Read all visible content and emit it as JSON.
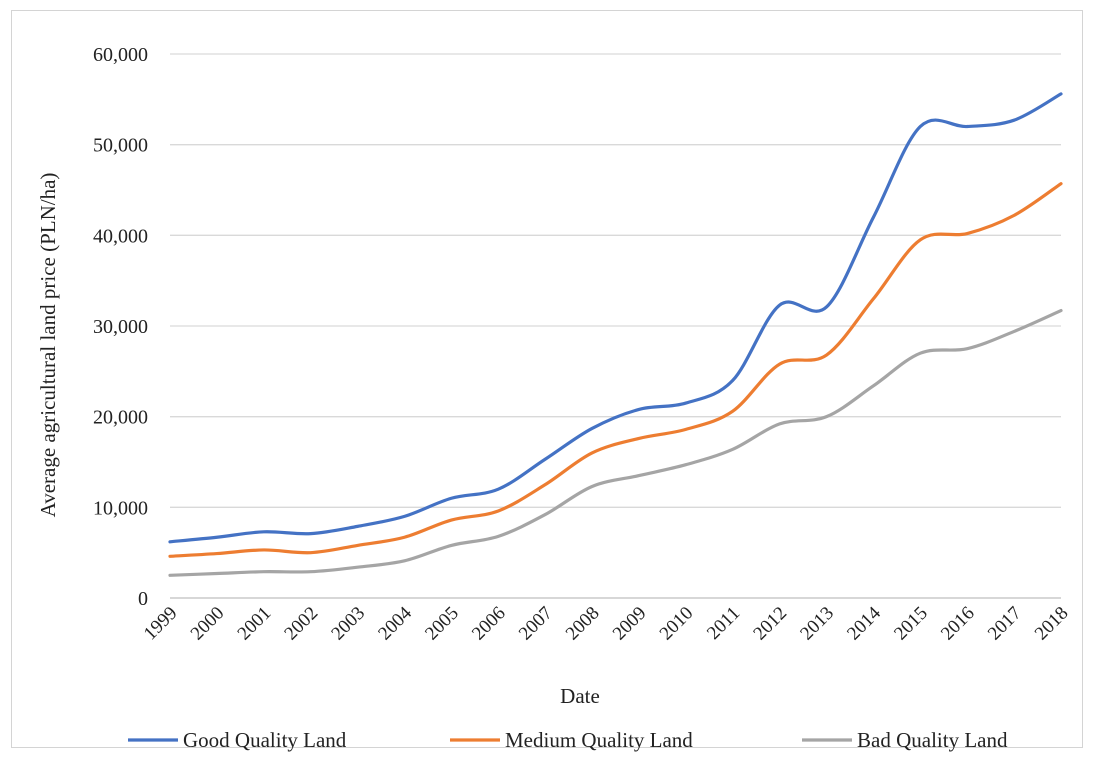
{
  "chart_data": {
    "type": "line",
    "title": "",
    "xlabel": "Date",
    "ylabel": "Average agricultural land price (PLN/ha)",
    "ylim": [
      0,
      60000
    ],
    "ytick_values": [
      0,
      10000,
      20000,
      30000,
      40000,
      50000,
      60000
    ],
    "ytick_labels": [
      "0",
      "10,000",
      "20,000",
      "30,000",
      "40,000",
      "50,000",
      "60,000"
    ],
    "grid": "horizontal",
    "legend_position": "bottom",
    "categories": [
      "1999",
      "2000",
      "2001",
      "2002",
      "2003",
      "2004",
      "2005",
      "2006",
      "2007",
      "2008",
      "2009",
      "2010",
      "2011",
      "2012",
      "2013",
      "2014",
      "2015",
      "2016",
      "2017",
      "2018"
    ],
    "series": [
      {
        "name": "Good Quality Land",
        "color": "#4472c4",
        "values": [
          6200,
          6700,
          7300,
          7100,
          7900,
          9000,
          11000,
          12000,
          15300,
          18700,
          20800,
          21500,
          24000,
          32300,
          32100,
          42000,
          52000,
          52000,
          52700,
          55600
        ]
      },
      {
        "name": "Medium Quality Land",
        "color": "#ed7d31",
        "values": [
          4600,
          4900,
          5300,
          5000,
          5800,
          6700,
          8600,
          9600,
          12500,
          16000,
          17600,
          18600,
          20600,
          25800,
          26800,
          33000,
          39500,
          40200,
          42200,
          45700
        ]
      },
      {
        "name": "Bad Quality Land",
        "color": "#a5a5a5",
        "values": [
          2500,
          2700,
          2900,
          2900,
          3400,
          4100,
          5800,
          6800,
          9200,
          12300,
          13500,
          14700,
          16400,
          19200,
          20000,
          23400,
          27000,
          27500,
          29400,
          31700
        ]
      }
    ]
  }
}
